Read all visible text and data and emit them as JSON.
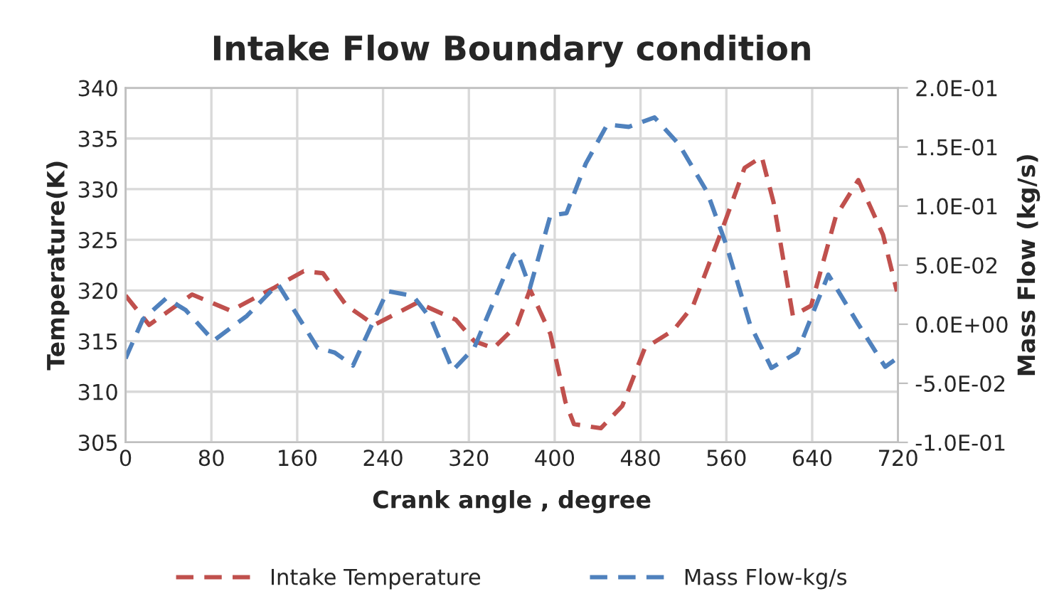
{
  "chart_data": {
    "type": "line",
    "title": "Intake Flow Boundary condition",
    "xlabel": "Crank angle , degree",
    "ylabel": "Temperature(K)",
    "y2label": "Mass Flow (kg/s)",
    "xlim": [
      0,
      720
    ],
    "xticks": [
      0,
      80,
      160,
      240,
      320,
      400,
      480,
      560,
      640,
      720
    ],
    "ylim": [
      305,
      340
    ],
    "yticks": [
      305,
      310,
      315,
      320,
      325,
      330,
      335,
      340
    ],
    "y2lim": [
      -0.1,
      0.2
    ],
    "y2ticks": [
      {
        "value": -0.1,
        "label": "-1.0E-01"
      },
      {
        "value": -0.05,
        "label": "-5.0E-02"
      },
      {
        "value": 0,
        "label": "0.0E+00"
      },
      {
        "value": 0.05,
        "label": "5.0E-02"
      },
      {
        "value": 0.1,
        "label": "1.0E-01"
      },
      {
        "value": 0.15,
        "label": "1.5E-01"
      },
      {
        "value": 0.2,
        "label": "2.0E-01"
      }
    ],
    "grid": true,
    "legend": "bottom",
    "line_style": "dashed",
    "marker": "none",
    "series": [
      {
        "name": "Intake Temperature",
        "color": "#c0504d",
        "x": [
          0,
          22,
          62,
          98,
          139,
          166,
          184,
          206,
          232,
          272,
          308,
          325,
          343,
          365,
          377,
          396,
          410,
          418,
          443,
          463,
          484,
          511,
          529,
          556,
          577,
          593,
          604,
          622,
          639,
          662,
          683,
          706,
          719
        ],
        "values": [
          319.5,
          316.6,
          319.6,
          318,
          320.3,
          321.9,
          321.7,
          318.5,
          316.6,
          318.8,
          317.1,
          315,
          314.3,
          316.6,
          320.1,
          315.7,
          309,
          306.8,
          306.4,
          308.6,
          314.3,
          316.1,
          318.5,
          326,
          332.1,
          333.2,
          328.7,
          317.5,
          318.5,
          327.3,
          330.9,
          325.5,
          319.9
        ]
      },
      {
        "name": "Mass Flow-kg/s",
        "color": "#4f81bd",
        "axis": "y2",
        "x": [
          0,
          16,
          38,
          56,
          82,
          113,
          142,
          179,
          195,
          212,
          244,
          268,
          285,
          305,
          325,
          361,
          365,
          377,
          396,
          411,
          429,
          449,
          469,
          493,
          516,
          542,
          560,
          582,
          602,
          626,
          655,
          683,
          708,
          719
        ],
        "values": [
          -0.029,
          0.004,
          0.022,
          0.012,
          -0.014,
          0.007,
          0.034,
          -0.02,
          -0.024,
          -0.035,
          0.028,
          0.024,
          0.004,
          -0.039,
          -0.02,
          0.058,
          0.061,
          0.031,
          0.092,
          0.094,
          0.136,
          0.169,
          0.167,
          0.175,
          0.152,
          0.112,
          0.067,
          0.0,
          -0.037,
          -0.024,
          0.042,
          0.0,
          -0.036,
          -0.029
        ]
      }
    ]
  }
}
